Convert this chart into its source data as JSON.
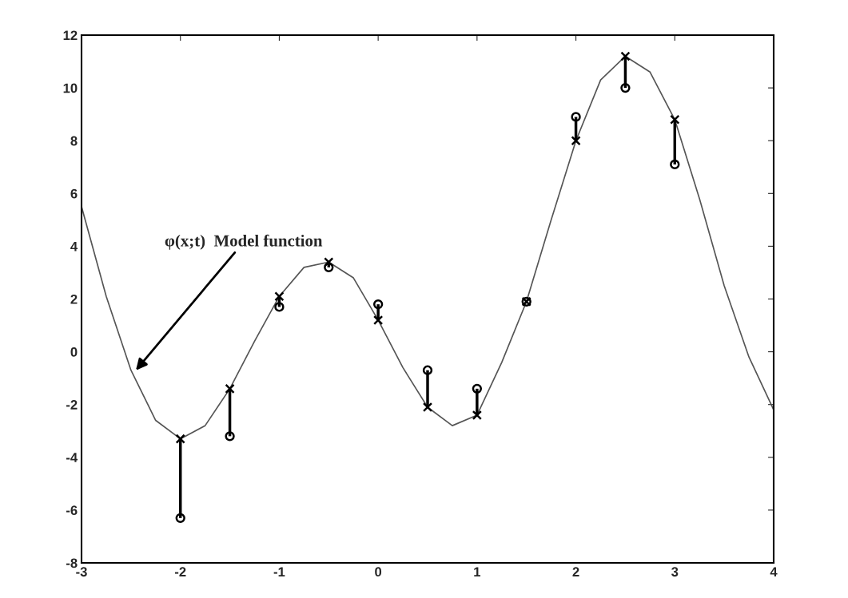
{
  "chart_data": {
    "type": "line",
    "series": [
      {
        "color": "#555555",
        "line_style": "solid",
        "marker": "none",
        "x": [
          -3,
          -2.75,
          -2.5,
          -2.25,
          -2,
          -1.75,
          -1.5,
          -1.25,
          -1,
          -0.75,
          -0.5,
          -0.25,
          0,
          0.25,
          0.5,
          0.75,
          1,
          1.25,
          1.5,
          1.75,
          2,
          2.25,
          2.5,
          2.75,
          3,
          3.25,
          3.5,
          3.75,
          4
        ],
        "values": [
          5.5,
          2.1,
          -0.7,
          -2.6,
          -3.3,
          -2.8,
          -1.4,
          0.4,
          2.1,
          3.2,
          3.4,
          2.8,
          1.2,
          -0.6,
          -2.1,
          -2.8,
          -2.4,
          -0.4,
          1.9,
          5.0,
          8.0,
          10.3,
          11.2,
          10.6,
          8.8,
          5.8,
          2.5,
          -0.2,
          -2.2
        ]
      },
      {
        "type": "scatter",
        "color": "#000000",
        "marker": "cross",
        "x": [
          -2,
          -1.5,
          -1,
          -0.5,
          0,
          0.5,
          1,
          1.5,
          2,
          2.5,
          3
        ],
        "values": [
          -3.3,
          -1.4,
          2.1,
          3.4,
          1.2,
          -2.1,
          -2.4,
          1.9,
          8.0,
          11.2,
          8.8
        ]
      },
      {
        "type": "scatter",
        "color": "#000000",
        "marker": "circle",
        "x": [
          -2,
          -1.5,
          -1,
          -0.5,
          0,
          0.5,
          1,
          1.5,
          2,
          2.5,
          3
        ],
        "values": [
          -6.3,
          -3.2,
          1.7,
          3.2,
          1.8,
          -0.7,
          -1.4,
          1.9,
          8.9,
          10.0,
          7.1
        ],
        "errors": [
          [
            -6.3,
            -3.3
          ],
          [
            -3.2,
            -1.4
          ],
          [
            1.7,
            2.1
          ],
          [
            3.2,
            3.4
          ],
          [
            1.2,
            1.8
          ],
          [
            -2.1,
            -0.7
          ],
          [
            -2.4,
            -1.4
          ],
          [
            1.9,
            1.9
          ],
          [
            8.0,
            8.9
          ],
          [
            10.0,
            11.2
          ],
          [
            7.1,
            8.8
          ]
        ]
      }
    ],
    "xlim": [
      -3,
      4
    ],
    "xticks": [
      -3,
      -2,
      -1,
      0,
      1,
      2,
      3,
      4
    ],
    "ylim": [
      -8,
      12
    ],
    "yticks": [
      -8,
      -6,
      -4,
      -2,
      0,
      2,
      4,
      6,
      8,
      10,
      12
    ],
    "grid": false,
    "legend": false,
    "annotations": [
      {
        "text": "φ(x;t)  Model function",
        "x": -2.45,
        "y": -0.7
      }
    ]
  }
}
